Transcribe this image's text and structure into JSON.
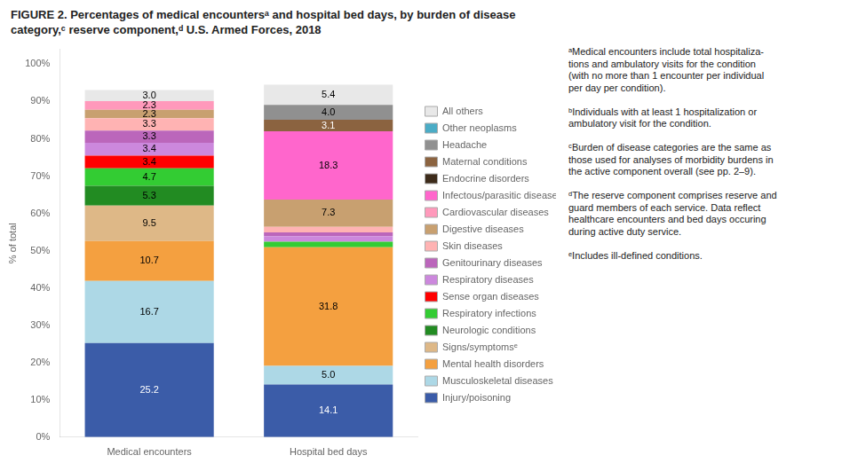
{
  "chart_data": {
    "type": "bar",
    "title": "FIGURE 2. Percentages of medical encountersᵃ and hospital bed days, by burden of disease\ncategory,ᶜ reserve component,ᵈ U.S. Armed Forces, 2018",
    "ylabel": "% of total",
    "categories": [
      "Medical encounters",
      "Hospital bed days"
    ],
    "stacked": true,
    "grid": false,
    "legend": "right",
    "data_labels": true,
    "ylim": [
      0,
      104
    ],
    "yticks": [
      {
        "value": 0,
        "label": "0%"
      },
      {
        "value": 10,
        "label": "10%"
      },
      {
        "value": 20,
        "label": "20%"
      },
      {
        "value": 30,
        "label": "30%"
      },
      {
        "value": 40,
        "label": "40%"
      },
      {
        "value": 50,
        "label": "50%"
      },
      {
        "value": 60,
        "label": "60%"
      },
      {
        "value": 70,
        "label": "70%"
      },
      {
        "value": 80,
        "label": "80%"
      },
      {
        "value": 90,
        "label": "90%"
      },
      {
        "value": 100,
        "label": "100%"
      }
    ],
    "series": [
      {
        "name": "Injury/poisoning",
        "color": "#3b5ca8",
        "values": [
          25.2,
          14.1
        ],
        "value_labels": [
          "25.2",
          "14.1"
        ]
      },
      {
        "name": "Musculoskeletal diseases",
        "color": "#add8e6",
        "values": [
          16.7,
          5.0
        ],
        "value_labels": [
          "16.7",
          "5.0"
        ]
      },
      {
        "name": "Mental health disorders",
        "color": "#f4a040",
        "values": [
          10.7,
          31.8
        ],
        "value_labels": [
          "10.7",
          "31.8"
        ]
      },
      {
        "name": "Signs/symptomsᵉ",
        "color": "#deb887",
        "values": [
          9.5,
          0.0
        ],
        "value_labels": [
          "9.5",
          null
        ]
      },
      {
        "name": "Neurologic conditions",
        "color": "#228B22",
        "values": [
          5.3,
          0.0
        ],
        "value_labels": [
          "5.3",
          null
        ]
      },
      {
        "name": "Respiratory infections",
        "color": "#33cc33",
        "values": [
          4.7,
          1.5
        ],
        "value_labels": [
          "4.7",
          null
        ]
      },
      {
        "name": "Sense organ diseases",
        "color": "#ff0000",
        "values": [
          3.4,
          0.0
        ],
        "value_labels": [
          "3.4",
          null
        ]
      },
      {
        "name": "Respiratory diseases",
        "color": "#cc88dd",
        "values": [
          3.4,
          1.5
        ],
        "value_labels": [
          "3.4",
          null
        ]
      },
      {
        "name": "Genitourinary diseases",
        "color": "#bb66bb",
        "values": [
          3.3,
          1.0
        ],
        "value_labels": [
          "3.3",
          null
        ]
      },
      {
        "name": "Skin diseases",
        "color": "#ffb3b3",
        "values": [
          3.3,
          1.5
        ],
        "value_labels": [
          "3.3",
          null
        ]
      },
      {
        "name": "Digestive diseases",
        "color": "#c8a070",
        "values": [
          2.3,
          7.3
        ],
        "value_labels": [
          "2.3",
          "7.3"
        ]
      },
      {
        "name": "Cardiovascular diseases",
        "color": "#ff99bb",
        "values": [
          2.3,
          0.0
        ],
        "value_labels": [
          "2.3",
          null
        ]
      },
      {
        "name": "Infectous/parasitic diseases",
        "color": "#ff66cc",
        "values": [
          0.0,
          18.3
        ],
        "value_labels": [
          null,
          "18.3"
        ]
      },
      {
        "name": "Endocrine disorders",
        "color": "#3d2b1a",
        "values": [
          0.0,
          0.0
        ],
        "value_labels": [
          null,
          null
        ]
      },
      {
        "name": "Maternal conditions",
        "color": "#8B6340",
        "values": [
          0.0,
          3.1
        ],
        "value_labels": [
          null,
          "3.1"
        ]
      },
      {
        "name": "Headache",
        "color": "#909090",
        "values": [
          0.0,
          4.0
        ],
        "value_labels": [
          null,
          "4.0"
        ]
      },
      {
        "name": "Other neoplasms",
        "color": "#4bacc6",
        "values": [
          0.0,
          0.0
        ],
        "value_labels": [
          null,
          null
        ]
      },
      {
        "name": "All others",
        "color": "#e8e8e8",
        "values": [
          3.0,
          5.4
        ],
        "value_labels": [
          "3.0",
          "5.4"
        ]
      }
    ],
    "annotations": [
      "ᵃMedical encounters include total hospitaliza-\ntions and ambulatory visits for the condition\n(with no more than 1 encounter per individual\nper day per condition).\n\nᵇIndividuals with at least 1 hospitalization or\nambulatory visit for the condition.\n\nᶜBurden of disease categories are the same as\nthose used for analyses of morbidity burdens in\nthe active component overall (see pp. 2–9).\n\nᵈThe reserve component comprises reserve and\nguard members of each service. Data reflect\nhealthcare encounters and bed days occuring\nduring active duty service.\n\nᵉIncludes ill-defined conditions."
    ]
  }
}
